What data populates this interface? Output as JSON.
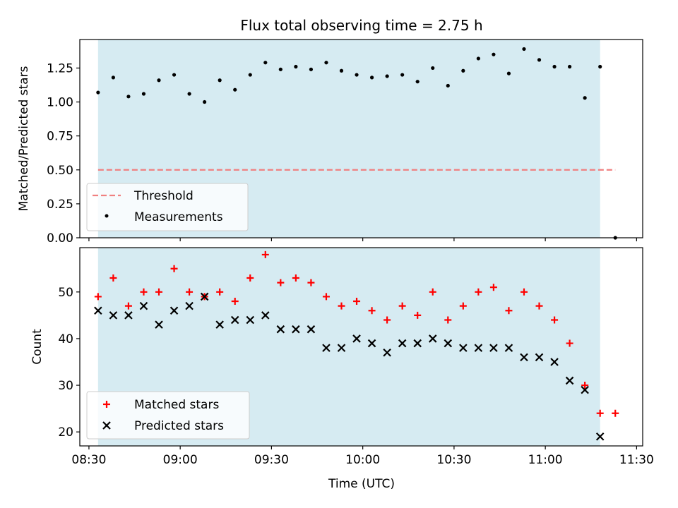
{
  "chart_data": [
    {
      "type": "scatter",
      "title": "Flux total observing time = 2.75 h",
      "ylabel": "Matched/Predicted stars",
      "xlim": [
        "08:27",
        "11:32"
      ],
      "ylim": [
        0,
        1.46
      ],
      "x_ticks": [
        "08:30",
        "09:00",
        "09:30",
        "10:00",
        "10:30",
        "11:00",
        "11:30"
      ],
      "y_ticks": [
        0.0,
        0.25,
        0.5,
        0.75,
        1.0,
        1.25
      ],
      "y_tick_labels": [
        "0.00",
        "0.25",
        "0.50",
        "0.75",
        "1.00",
        "1.25"
      ],
      "shaded_span": [
        "08:33",
        "11:18"
      ],
      "shade_color": "#add8e6",
      "legend": {
        "position": "lower-left",
        "entries": [
          "Threshold",
          "Measurements"
        ]
      },
      "series": [
        {
          "name": "Threshold",
          "kind": "dashed-line",
          "color": "#f08080",
          "x": [
            "08:33",
            "11:23"
          ],
          "values": [
            0.5,
            0.5
          ]
        },
        {
          "name": "Measurements",
          "kind": "dot",
          "color": "#000000",
          "x": [
            "08:33",
            "08:38",
            "08:43",
            "08:48",
            "08:53",
            "08:58",
            "09:03",
            "09:08",
            "09:13",
            "09:18",
            "09:23",
            "09:28",
            "09:33",
            "09:38",
            "09:43",
            "09:48",
            "09:53",
            "09:58",
            "10:03",
            "10:08",
            "10:13",
            "10:18",
            "10:23",
            "10:28",
            "10:33",
            "10:38",
            "10:43",
            "10:48",
            "10:53",
            "10:58",
            "11:03",
            "11:08",
            "11:13",
            "11:18",
            "11:23"
          ],
          "values": [
            1.07,
            1.18,
            1.04,
            1.06,
            1.16,
            1.2,
            1.06,
            1.0,
            1.16,
            1.09,
            1.2,
            1.29,
            1.24,
            1.26,
            1.24,
            1.29,
            1.23,
            1.2,
            1.18,
            1.19,
            1.2,
            1.15,
            1.25,
            1.12,
            1.23,
            1.32,
            1.35,
            1.21,
            1.39,
            1.31,
            1.26,
            1.26,
            1.03,
            1.26,
            0.0
          ]
        }
      ]
    },
    {
      "type": "scatter",
      "xlabel": "Time (UTC)",
      "ylabel": "Count",
      "xlim": [
        "08:27",
        "11:32"
      ],
      "ylim": [
        17,
        59.5
      ],
      "x_ticks": [
        "08:30",
        "09:00",
        "09:30",
        "10:00",
        "10:30",
        "11:00",
        "11:30"
      ],
      "y_ticks": [
        20,
        30,
        40,
        50
      ],
      "shaded_span": [
        "08:33",
        "11:18"
      ],
      "shade_color": "#add8e6",
      "legend": {
        "position": "lower-left",
        "entries": [
          "Matched stars",
          "Predicted stars"
        ]
      },
      "series": [
        {
          "name": "Matched stars",
          "kind": "plus",
          "color": "#ff0000",
          "x": [
            "08:33",
            "08:38",
            "08:43",
            "08:48",
            "08:53",
            "08:58",
            "09:03",
            "09:08",
            "09:13",
            "09:18",
            "09:23",
            "09:28",
            "09:33",
            "09:38",
            "09:43",
            "09:48",
            "09:53",
            "09:58",
            "10:03",
            "10:08",
            "10:13",
            "10:18",
            "10:23",
            "10:28",
            "10:33",
            "10:38",
            "10:43",
            "10:48",
            "10:53",
            "10:58",
            "11:03",
            "11:08",
            "11:13",
            "11:18",
            "11:23"
          ],
          "values": [
            49,
            53,
            47,
            50,
            50,
            55,
            50,
            49,
            50,
            48,
            53,
            58,
            52,
            53,
            52,
            49,
            47,
            48,
            46,
            44,
            47,
            45,
            50,
            44,
            47,
            50,
            51,
            46,
            50,
            47,
            44,
            39,
            30,
            24,
            24
          ]
        },
        {
          "name": "Predicted stars",
          "kind": "x",
          "color": "#000000",
          "x": [
            "08:33",
            "08:38",
            "08:43",
            "08:48",
            "08:53",
            "08:58",
            "09:03",
            "09:08",
            "09:13",
            "09:18",
            "09:23",
            "09:28",
            "09:33",
            "09:38",
            "09:43",
            "09:48",
            "09:53",
            "09:58",
            "10:03",
            "10:08",
            "10:13",
            "10:18",
            "10:23",
            "10:28",
            "10:33",
            "10:38",
            "10:43",
            "10:48",
            "10:53",
            "10:58",
            "11:03",
            "11:08",
            "11:13",
            "11:18"
          ],
          "values": [
            46,
            45,
            45,
            47,
            43,
            46,
            47,
            49,
            43,
            44,
            44,
            45,
            42,
            42,
            42,
            38,
            38,
            40,
            39,
            37,
            39,
            39,
            40,
            39,
            38,
            38,
            38,
            38,
            36,
            36,
            35,
            31,
            29,
            19
          ]
        }
      ]
    }
  ]
}
